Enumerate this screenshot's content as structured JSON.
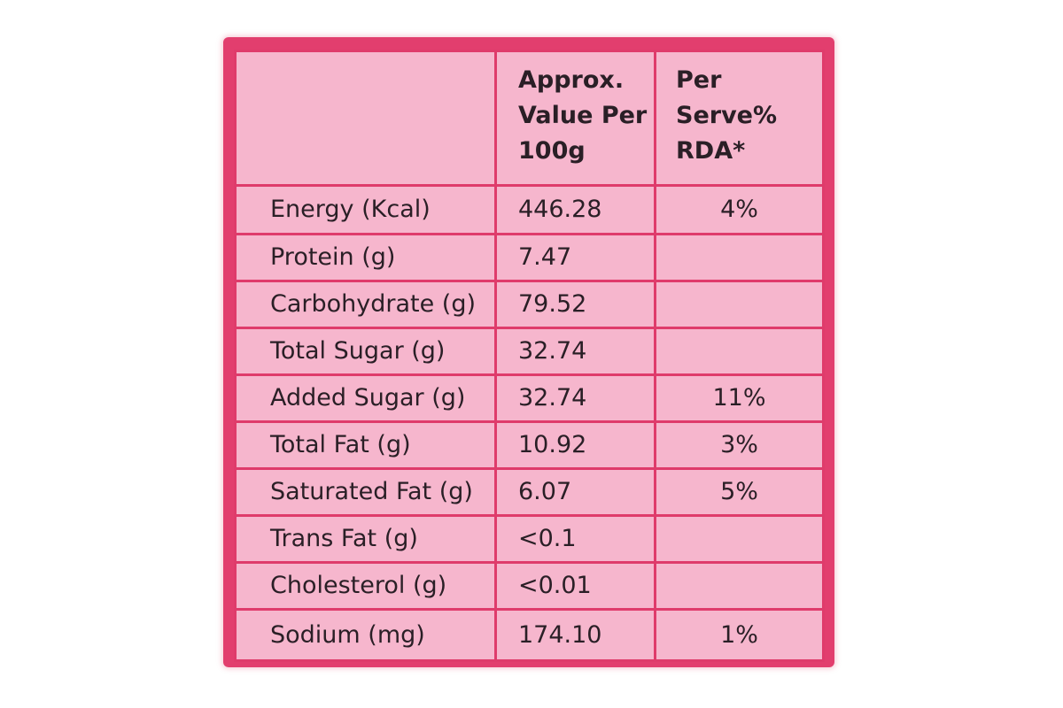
{
  "table": {
    "headers": {
      "nutrient": "",
      "value": "Approx. Value Per 100g",
      "rda": "Per Serve% RDA*"
    },
    "rows": [
      {
        "nutrient": "Energy (Kcal)",
        "value": "446.28",
        "rda": "4%"
      },
      {
        "nutrient": "Protein (g)",
        "value": "7.47",
        "rda": ""
      },
      {
        "nutrient": "Carbohydrate (g)",
        "value": "79.52",
        "rda": ""
      },
      {
        "nutrient": "Total Sugar (g)",
        "value": "32.74",
        "rda": ""
      },
      {
        "nutrient": "Added Sugar (g)",
        "value": "32.74",
        "rda": "11%"
      },
      {
        "nutrient": "Total Fat (g)",
        "value": "10.92",
        "rda": "3%"
      },
      {
        "nutrient": "Saturated Fat (g)",
        "value": "6.07",
        "rda": "5%"
      },
      {
        "nutrient": "Trans Fat (g)",
        "value": "<0.1",
        "rda": ""
      },
      {
        "nutrient": "Cholesterol (g)",
        "value": "<0.01",
        "rda": ""
      },
      {
        "nutrient": "Sodium (mg)",
        "value": "174.10",
        "rda": "1%"
      }
    ]
  },
  "colors": {
    "panel": "#e23e6e",
    "cell_background": "#f6b6cd",
    "grid_lines": "#df3b6b",
    "text": "#2a1f26"
  }
}
